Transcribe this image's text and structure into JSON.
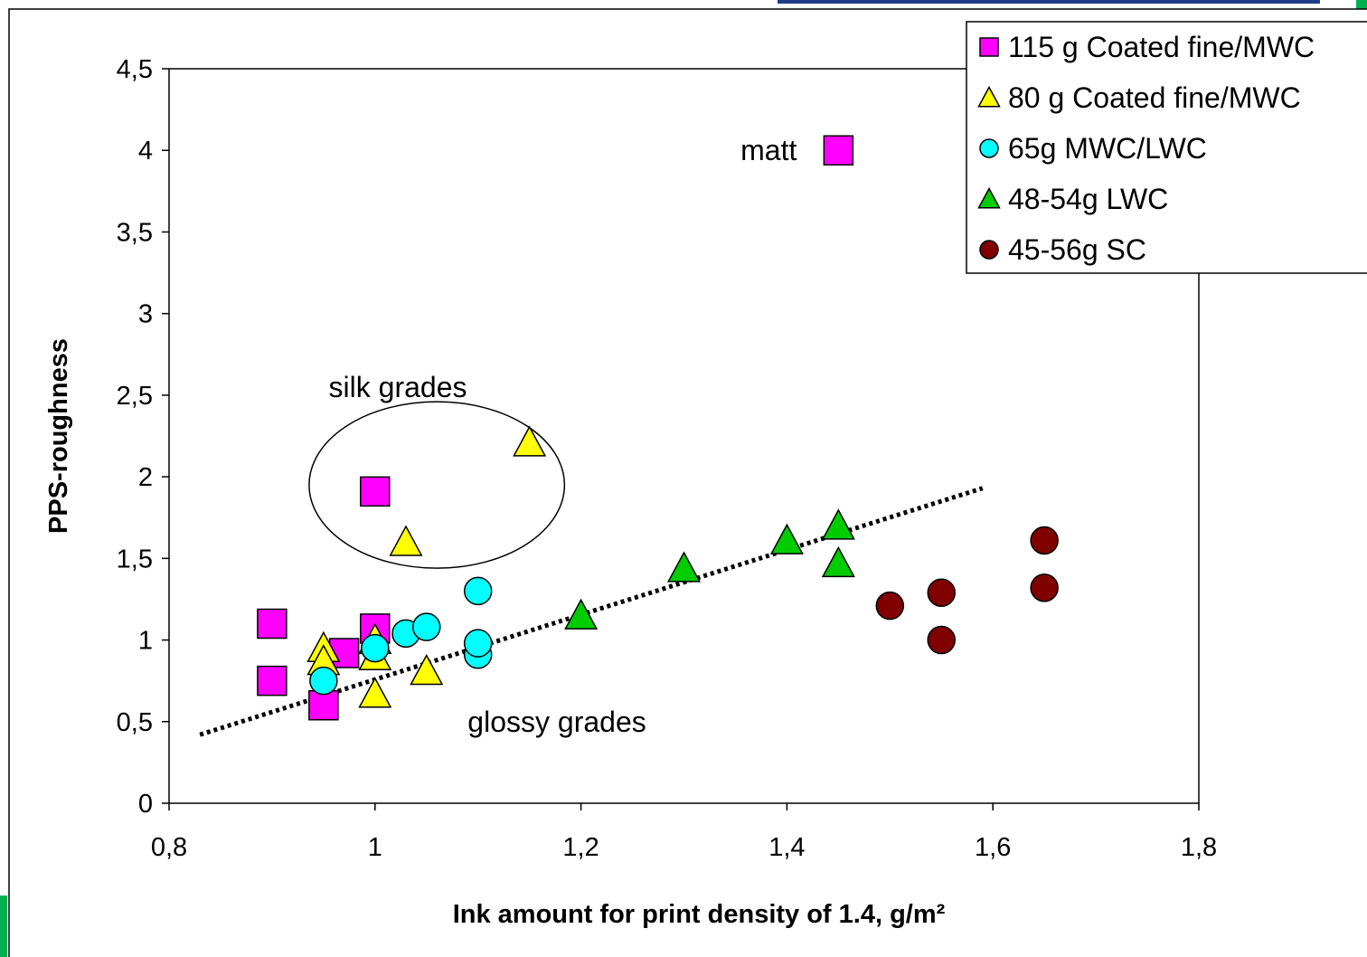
{
  "chart_data": {
    "type": "scatter",
    "xlabel": "Ink amount for print density of 1.4, g/m²",
    "ylabel": "PPS-roughness",
    "xlim": [
      0.8,
      1.8
    ],
    "ylim": [
      0,
      4.5
    ],
    "x_ticks": [
      0.8,
      1.0,
      1.2,
      1.4,
      1.6,
      1.8
    ],
    "x_tick_labels": [
      "0,8",
      "1",
      "1,2",
      "1,4",
      "1,6",
      "1,8"
    ],
    "y_ticks": [
      0,
      0.5,
      1,
      1.5,
      2,
      2.5,
      3,
      3.5,
      4,
      4.5
    ],
    "y_tick_labels": [
      "0",
      "0,5",
      "1",
      "1,5",
      "2",
      "2,5",
      "3",
      "3,5",
      "4",
      "4,5"
    ],
    "grid": false,
    "legend_position": "top-right",
    "series": [
      {
        "name": "115 g Coated fine/MWC",
        "marker": "square",
        "color": "#ff00ff",
        "points": [
          [
            0.9,
            1.1
          ],
          [
            0.9,
            0.75
          ],
          [
            0.95,
            0.6
          ],
          [
            0.97,
            0.92
          ],
          [
            1.0,
            1.07
          ],
          [
            1.0,
            1.91
          ],
          [
            1.45,
            4.0
          ]
        ]
      },
      {
        "name": "80 g Coated fine/MWC",
        "marker": "triangle",
        "color": "#ffff00",
        "points": [
          [
            0.95,
            0.95
          ],
          [
            0.95,
            0.87
          ],
          [
            1.0,
            1.0
          ],
          [
            1.0,
            0.9
          ],
          [
            1.0,
            0.67
          ],
          [
            1.03,
            1.6
          ],
          [
            1.05,
            0.81
          ],
          [
            1.15,
            2.21
          ]
        ]
      },
      {
        "name": "65g MWC/LWC",
        "marker": "circle",
        "color": "#00ffff",
        "points": [
          [
            0.95,
            0.75
          ],
          [
            1.0,
            0.95
          ],
          [
            1.03,
            1.04
          ],
          [
            1.05,
            1.08
          ],
          [
            1.1,
            0.91
          ],
          [
            1.1,
            0.98
          ],
          [
            1.1,
            1.3
          ]
        ]
      },
      {
        "name": "48-54g LWC",
        "marker": "triangle",
        "color": "#00cc00",
        "points": [
          [
            1.2,
            1.15
          ],
          [
            1.3,
            1.44
          ],
          [
            1.4,
            1.61
          ],
          [
            1.45,
            1.7
          ],
          [
            1.45,
            1.47
          ]
        ]
      },
      {
        "name": "45-56g SC",
        "marker": "circle",
        "color": "#800000",
        "points": [
          [
            1.5,
            1.21
          ],
          [
            1.55,
            1.29
          ],
          [
            1.55,
            1.0
          ],
          [
            1.65,
            1.61
          ],
          [
            1.65,
            1.32
          ]
        ]
      }
    ],
    "trendline": {
      "style": "dotted",
      "color": "#000000",
      "from": [
        0.83,
        0.42
      ],
      "to": [
        1.59,
        1.93
      ]
    },
    "annotations": [
      {
        "text": "matt",
        "x": 1.355,
        "y": 4.0
      },
      {
        "text": "silk grades",
        "x": 0.955,
        "y": 2.55
      },
      {
        "text": "glossy grades",
        "x": 1.09,
        "y": 0.5
      }
    ],
    "ellipse": {
      "cx": 1.06,
      "cy": 1.95,
      "rx": 0.124,
      "ry": 0.51
    }
  }
}
